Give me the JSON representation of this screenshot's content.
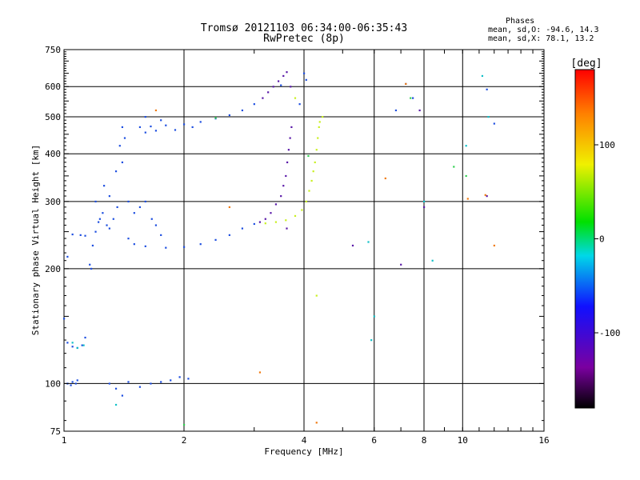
{
  "chart_data": {
    "type": "scatter",
    "title": "Tromsø 20121103 06:34:00-06:35:43",
    "subtitle": "RwPretec (8p)",
    "xlabel": "Frequency [MHz]",
    "ylabel": "Stationary phase Virtual Height [km]",
    "x_scale": "log",
    "y_scale": "log",
    "xlim": [
      1,
      16
    ],
    "ylim": [
      75,
      750
    ],
    "x_ticks": [
      1,
      2,
      4,
      6,
      8,
      10,
      16
    ],
    "y_ticks": [
      75,
      100,
      200,
      300,
      400,
      500,
      600,
      750
    ],
    "grid": true,
    "stats": {
      "header": "Phases",
      "o_line": "mean, sd,O: -94.6, 14.3",
      "x_line": "mean, sd,X:  78.1, 13.2"
    },
    "colorbar": {
      "label": "[deg]",
      "range": [
        -180,
        180
      ],
      "ticks": [
        100,
        0,
        -100
      ],
      "colormap": "rainbow"
    },
    "series": [
      {
        "points": [
          [
            1.02,
            100
          ],
          [
            1.05,
            101
          ],
          [
            1.08,
            102
          ],
          [
            1.04,
            99
          ],
          [
            1.07,
            100
          ],
          [
            1.0,
            148
          ],
          [
            1.02,
            128
          ],
          [
            1.05,
            125
          ],
          [
            1.08,
            124
          ],
          [
            1.11,
            126
          ],
          [
            1.13,
            132
          ],
          [
            1.02,
            215
          ],
          [
            1.05,
            246
          ],
          [
            1.1,
            245
          ],
          [
            1.13,
            244
          ],
          [
            1.16,
            205
          ],
          [
            1.17,
            200
          ],
          [
            1.18,
            230
          ],
          [
            1.2,
            250
          ],
          [
            1.22,
            265
          ],
          [
            1.23,
            270
          ],
          [
            1.2,
            300
          ],
          [
            1.25,
            280
          ],
          [
            1.28,
            260
          ],
          [
            1.3,
            255
          ],
          [
            1.33,
            270
          ],
          [
            1.36,
            290
          ],
          [
            1.3,
            310
          ],
          [
            1.26,
            330
          ],
          [
            1.35,
            360
          ],
          [
            1.4,
            380
          ],
          [
            1.38,
            420
          ],
          [
            1.4,
            470
          ],
          [
            1.42,
            440
          ],
          [
            1.45,
            300
          ],
          [
            1.5,
            280
          ],
          [
            1.55,
            290
          ],
          [
            1.6,
            300
          ],
          [
            1.66,
            270
          ],
          [
            1.7,
            260
          ],
          [
            1.75,
            245
          ],
          [
            1.45,
            240
          ],
          [
            1.5,
            232
          ],
          [
            1.6,
            229
          ],
          [
            1.8,
            227
          ],
          [
            2.0,
            228
          ],
          [
            2.2,
            232
          ],
          [
            2.4,
            238
          ],
          [
            2.6,
            245
          ],
          [
            2.8,
            255
          ],
          [
            3.0,
            262
          ],
          [
            1.55,
            470
          ],
          [
            1.65,
            472
          ],
          [
            1.8,
            475
          ],
          [
            2.0,
            478
          ],
          [
            2.2,
            485
          ],
          [
            2.4,
            495
          ],
          [
            2.6,
            505
          ],
          [
            2.8,
            520
          ],
          [
            3.0,
            540
          ],
          [
            1.6,
            455
          ],
          [
            1.7,
            460
          ],
          [
            1.9,
            462
          ],
          [
            2.1,
            470
          ],
          [
            1.6,
            500
          ],
          [
            1.75,
            490
          ],
          [
            1.55,
            98
          ],
          [
            1.65,
            100
          ],
          [
            1.75,
            101
          ],
          [
            1.85,
            102
          ],
          [
            1.95,
            104
          ],
          [
            2.05,
            103
          ],
          [
            1.3,
            100
          ],
          [
            1.35,
            97
          ],
          [
            1.4,
            93
          ],
          [
            1.45,
            101
          ]
        ],
        "color": "#1e4fe0"
      },
      {
        "points": [
          [
            3.1,
            265
          ],
          [
            3.2,
            270
          ],
          [
            3.3,
            280
          ],
          [
            3.4,
            295
          ],
          [
            3.5,
            310
          ],
          [
            3.55,
            330
          ],
          [
            3.6,
            350
          ],
          [
            3.63,
            380
          ],
          [
            3.66,
            410
          ],
          [
            3.69,
            440
          ],
          [
            3.72,
            470
          ],
          [
            3.15,
            560
          ],
          [
            3.25,
            580
          ],
          [
            3.35,
            600
          ],
          [
            3.45,
            620
          ],
          [
            3.55,
            640
          ],
          [
            3.62,
            655
          ],
          [
            3.7,
            600
          ],
          [
            3.62,
            255
          ],
          [
            7.8,
            520
          ],
          [
            8.0,
            290
          ],
          [
            7.0,
            205
          ],
          [
            5.3,
            230
          ],
          [
            11.5,
            310
          ]
        ],
        "color": "#5a1aa8"
      },
      {
        "points": [
          [
            3.2,
            263
          ],
          [
            3.4,
            265
          ],
          [
            3.6,
            268
          ],
          [
            3.8,
            275
          ],
          [
            3.95,
            285
          ],
          [
            4.05,
            300
          ],
          [
            4.12,
            320
          ],
          [
            4.18,
            340
          ],
          [
            4.22,
            360
          ],
          [
            4.26,
            380
          ],
          [
            4.3,
            410
          ],
          [
            4.33,
            440
          ],
          [
            4.36,
            470
          ],
          [
            4.38,
            485
          ],
          [
            3.8,
            560
          ],
          [
            4.3,
            170
          ],
          [
            4.45,
            500
          ]
        ],
        "color": "#c9f021"
      },
      {
        "points": [
          [
            1.05,
            128
          ],
          [
            1.08,
            124
          ],
          [
            1.12,
            126
          ],
          [
            1.35,
            88
          ],
          [
            5.9,
            130
          ],
          [
            6.0,
            150
          ],
          [
            8.0,
            300
          ],
          [
            8.4,
            210
          ],
          [
            10.2,
            420
          ],
          [
            11.2,
            640
          ],
          [
            11.6,
            500
          ],
          [
            5.8,
            235
          ]
        ],
        "color": "#10c0c8"
      },
      {
        "points": [
          [
            3.5,
            605
          ],
          [
            4.05,
            625
          ],
          [
            3.9,
            540
          ],
          [
            4.0,
            650
          ],
          [
            7.2,
            610
          ],
          [
            7.5,
            560
          ],
          [
            12.0,
            480
          ],
          [
            11.5,
            590
          ],
          [
            6.8,
            520
          ]
        ],
        "color": "#1e4fe0"
      },
      {
        "points": [
          [
            1.7,
            520
          ],
          [
            2.6,
            290
          ],
          [
            3.1,
            107
          ],
          [
            4.3,
            79
          ],
          [
            7.2,
            610
          ],
          [
            10.3,
            305
          ],
          [
            11.4,
            312
          ],
          [
            12.0,
            230
          ],
          [
            6.4,
            345
          ]
        ],
        "color": "#f07a10"
      },
      {
        "points": [
          [
            2.4,
            497
          ],
          [
            2.0,
            78
          ],
          [
            4.1,
            395
          ],
          [
            7.4,
            560
          ],
          [
            9.5,
            370
          ],
          [
            10.2,
            350
          ]
        ],
        "color": "#30d050"
      }
    ]
  }
}
